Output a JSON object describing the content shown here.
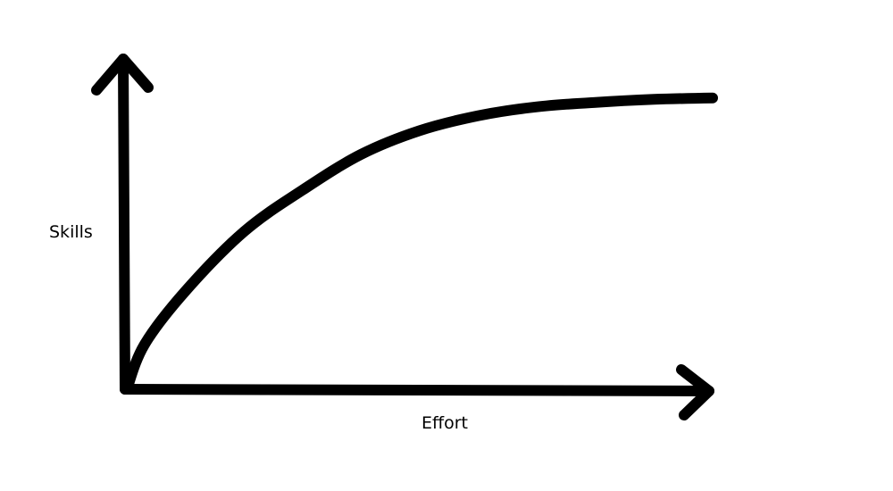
{
  "chart_data": {
    "type": "line",
    "title": "",
    "xlabel": "Effort",
    "ylabel": "Skills",
    "grid": false,
    "legend": "none",
    "ticks": "none",
    "series": [
      {
        "values": [
          [
            0,
            0
          ],
          [
            0.03,
            0.15
          ],
          [
            0.1,
            0.33
          ],
          [
            0.2,
            0.53
          ],
          [
            0.3,
            0.67
          ],
          [
            0.4,
            0.79
          ],
          [
            0.5,
            0.87
          ],
          [
            0.6,
            0.92
          ],
          [
            0.7,
            0.95
          ],
          [
            0.8,
            0.965
          ],
          [
            0.9,
            0.975
          ],
          [
            1,
            0.98
          ]
        ]
      }
    ],
    "colors": {
      "line": "#000000",
      "axes": "#000000",
      "background": "#ffffff"
    }
  }
}
